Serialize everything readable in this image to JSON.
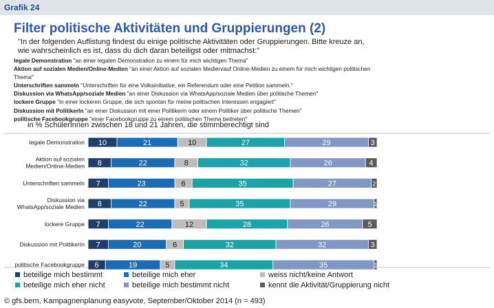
{
  "header": {
    "grafik": "Grafik 24"
  },
  "title": "Filter politische Aktivitäten und Gruppierungen (2)",
  "intro": "\"In der folgenden Auflistung findest du einige politische Aktivitäten oder Gruppierungen. Bitte kreuze an, wie wahrscheinlich es ist, dass du dich daran beteiligst oder mitmachst:\"",
  "items": [
    {
      "term": "legale Demonstration",
      "desc": "\"an einer legalen Demonstration zu einem für mich wichtigen Thema\""
    },
    {
      "term": "Aktion auf sozialen Medien/Online-Medien",
      "desc": "\"an einer Aktion auf sozialen Medien/auf Online-Medien zu einem für mich wichtigen politischen Thema\""
    },
    {
      "term": "Unterschriften sammeln",
      "desc": "\"Unterschriften für eine Volksinitiative, ein Referendum oder eine Petition sammeln.\""
    },
    {
      "term": "Diskussion via WhatsApp/soziale Medien",
      "desc": "\"an einer Diskussion via WhatsApp/soziale Medien über politische Themen\""
    },
    {
      "term": "lockere Gruppe",
      "desc": "\"in einer lockeren Gruppe, die sich spontan für meine politischen Interessen engagiert\""
    },
    {
      "term": "Diskussion mit PolitikerIn",
      "desc": "\"an einer Diskussion mit einer Politikerin oder einem Politiker über politische Themen\""
    },
    {
      "term": "politische Facebookgruppe",
      "desc": "\"einer Facebookgruppe zu einem politischen Thema beitreten\""
    }
  ],
  "subtitle": "in % SchülerInnen zwischen 18 und 21 Jahren, die stimmberechtigt sind",
  "source": "© gfs.bern, Kampagnenplanung easyvote, September/Oktober 2014 (n = 493)",
  "chart_data": {
    "type": "bar",
    "orientation": "horizontal",
    "stacked": true,
    "categories": [
      "legale Demonstration",
      "Aktion auf sozialen\nMedien/Online-Medien",
      "Unterschriften sammeln",
      "Diskussion via\nWhatsApp/soziale Medien",
      "lockere Gruppe",
      "Diskussion mit PolitikerIn",
      "politische Facebookgruppe"
    ],
    "series": [
      {
        "name": "beteilige mich bestimmt",
        "color": "#1f3f6b",
        "values": [
          10,
          8,
          7,
          8,
          7,
          7,
          6
        ]
      },
      {
        "name": "beteilige mich eher",
        "color": "#1b6cb3",
        "values": [
          21,
          22,
          23,
          22,
          22,
          20,
          19
        ]
      },
      {
        "name": "weiss nicht/keine Antwort",
        "color": "#bdbdbd",
        "values": [
          10,
          8,
          6,
          5,
          12,
          6,
          5
        ]
      },
      {
        "name": "beteilige mich eher nicht",
        "color": "#1ba3a8",
        "values": [
          27,
          32,
          35,
          35,
          28,
          32,
          34
        ]
      },
      {
        "name": "beteilige mich bestimmt nicht",
        "color": "#8197c4",
        "values": [
          29,
          26,
          27,
          29,
          26,
          32,
          35
        ]
      },
      {
        "name": "kennt die Aktivität/Gruppierung nicht",
        "color": "#5b5b5b",
        "values": [
          3,
          4,
          2,
          1,
          5,
          3,
          1
        ]
      }
    ],
    "xlim": [
      0,
      100
    ],
    "legend_position": "bottom"
  }
}
